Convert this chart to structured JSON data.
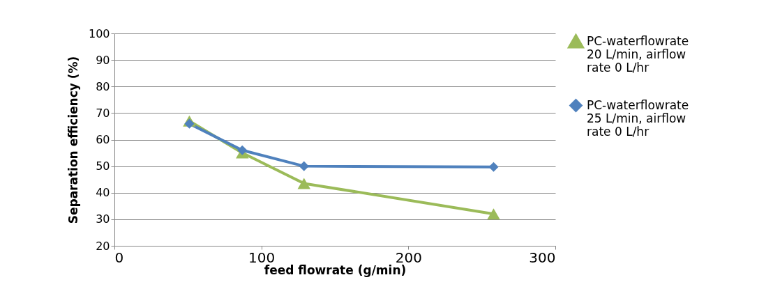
{
  "chart_data": {
    "type": "line",
    "xlabel": "feed flowrate (g/min)",
    "ylabel": "Separation efficiency (%)",
    "x": [
      51,
      87,
      129,
      258
    ],
    "series": [
      {
        "name": "PC-waterflowrate 20 L/min, airflow rate 0 L/hr",
        "color": "#9bbb59",
        "marker": "triangle",
        "values": [
          67,
          55,
          43.5,
          32
        ]
      },
      {
        "name": "PC-waterflowrate 25 L/min, airflow rate 0 L/hr",
        "color": "#4f81bd",
        "marker": "diamond",
        "values": [
          66,
          56,
          50,
          49.7
        ]
      }
    ],
    "xlim": [
      0,
      300
    ],
    "xticks": [
      0,
      100,
      200,
      300
    ],
    "ylim": [
      20,
      100
    ],
    "yticks": [
      20,
      30,
      40,
      50,
      60,
      70,
      80,
      90,
      100
    ],
    "grid": "y",
    "legend": "right"
  }
}
